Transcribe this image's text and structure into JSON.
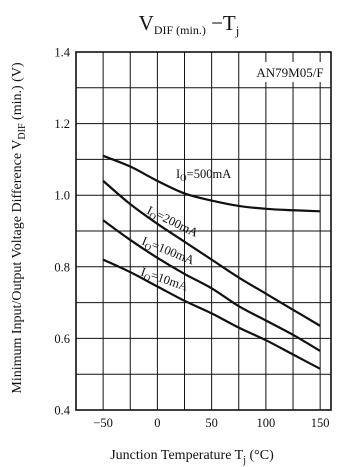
{
  "chart_data": {
    "type": "line",
    "title": {
      "main": "V",
      "sub": "DIF (min.)",
      "rest": " −T",
      "sub2": "j"
    },
    "model": "AN79M05/F",
    "xlabel": {
      "main": "Junction Temperature  T",
      "sub": "j",
      "unit": " (°C)"
    },
    "ylabel": {
      "main": "Minimum Input/Output Voltage Difference  V",
      "sub": "DIF",
      "unit": " (min.) (V)"
    },
    "xlim": [
      -75,
      160
    ],
    "ylim": [
      0.4,
      1.4
    ],
    "x_ticks": [
      -50,
      0,
      50,
      100,
      150
    ],
    "y_ticks": [
      0.4,
      0.6,
      0.8,
      1.0,
      1.2,
      1.4
    ],
    "y_tick_labels": [
      "0.4",
      "0.6",
      "0.8",
      "1.0",
      "1.2",
      "1.4"
    ],
    "x_tick_labels": [
      "−50",
      "0",
      "50",
      "100",
      "150"
    ],
    "grid": true,
    "series": [
      {
        "name": "I_O=500mA",
        "label": {
          "base": "I",
          "sub": "O",
          "rest": "=500mA"
        },
        "x": [
          -50,
          -25,
          0,
          25,
          50,
          75,
          100,
          125,
          150
        ],
        "y": [
          1.11,
          1.08,
          1.04,
          1.005,
          0.985,
          0.97,
          0.962,
          0.958,
          0.955
        ]
      },
      {
        "name": "I_O=200mA",
        "label": {
          "base": "I",
          "sub": "O",
          "rest": "=200mA"
        },
        "x": [
          -50,
          -25,
          0,
          25,
          50,
          75,
          100,
          125,
          150
        ],
        "y": [
          1.04,
          0.975,
          0.92,
          0.87,
          0.82,
          0.77,
          0.725,
          0.68,
          0.635
        ]
      },
      {
        "name": "I_O=100mA",
        "label": {
          "base": "I",
          "sub": "O",
          "rest": "=100mA"
        },
        "x": [
          -50,
          -25,
          0,
          25,
          50,
          75,
          100,
          125,
          150
        ],
        "y": [
          0.93,
          0.875,
          0.825,
          0.78,
          0.74,
          0.69,
          0.65,
          0.61,
          0.565
        ]
      },
      {
        "name": "I_O=10mA",
        "label": {
          "base": "I",
          "sub": "O",
          "rest": "=10mA"
        },
        "x": [
          -50,
          -25,
          0,
          25,
          50,
          75,
          100,
          125,
          150
        ],
        "y": [
          0.82,
          0.785,
          0.745,
          0.705,
          0.67,
          0.63,
          0.595,
          0.555,
          0.515
        ]
      }
    ]
  }
}
